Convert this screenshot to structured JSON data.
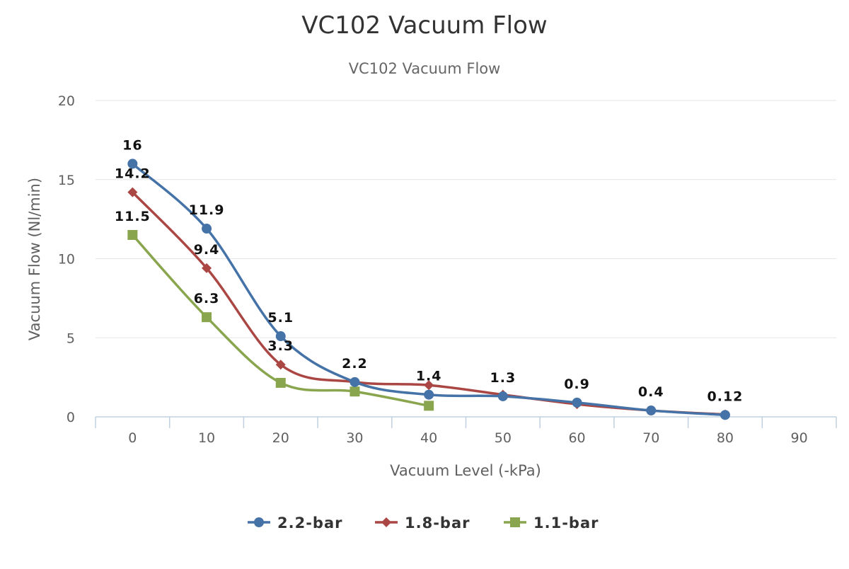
{
  "chart_data": {
    "type": "line",
    "title": "VC102 Vacuum Flow",
    "subtitle": "VC102 Vacuum Flow",
    "xlabel": "Vacuum Level (-kPa)",
    "ylabel": "Vacuum Flow (Nl/min)",
    "categories": [
      "0",
      "10",
      "20",
      "30",
      "40",
      "50",
      "60",
      "70",
      "80",
      "90"
    ],
    "xlim": [
      0,
      90
    ],
    "ylim": [
      0,
      20
    ],
    "y_ticks": [
      0,
      5,
      10,
      15,
      20
    ],
    "grid": "horizontal",
    "legend_position": "bottom-center",
    "smooth": true,
    "series": [
      {
        "name": "2.2-bar",
        "color": "#4572a7",
        "marker": "circle",
        "x": [
          0,
          10,
          20,
          30,
          40,
          50,
          60,
          70,
          80
        ],
        "values": [
          16,
          11.9,
          5.1,
          2.2,
          1.4,
          1.3,
          0.9,
          0.4,
          0.12
        ],
        "labels": [
          "16",
          "11.9",
          "5.1",
          "2.2",
          "1.4",
          "1.3",
          "0.9",
          "0.4",
          "0.12"
        ]
      },
      {
        "name": "1.8-bar",
        "color": "#aa4643",
        "marker": "diamond",
        "x": [
          0,
          10,
          20,
          30,
          40,
          50,
          60,
          70,
          80
        ],
        "values": [
          14.2,
          9.4,
          3.3,
          2.2,
          2.0,
          1.4,
          0.8,
          0.4,
          0.15
        ],
        "labels": [
          "14.2",
          "9.4",
          "3.3",
          "",
          "",
          "",
          "",
          "",
          ""
        ]
      },
      {
        "name": "1.1-bar",
        "color": "#89a54e",
        "marker": "square",
        "x": [
          0,
          10,
          20,
          30,
          40
        ],
        "values": [
          11.5,
          6.3,
          2.15,
          1.6,
          0.7
        ],
        "labels": [
          "11.5",
          "6.3",
          "",
          "",
          ""
        ]
      }
    ]
  }
}
